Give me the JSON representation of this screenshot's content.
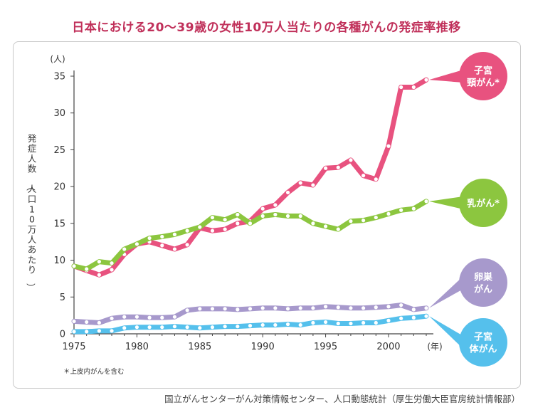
{
  "title": "日本における20〜39歳の女性10万人当たりの各種がんの発症率推移",
  "source": "国立がんセンターがん対策情報センター、人口動態統計（厚生労働大臣官房統計情報部）",
  "footnote": "＊上皮内がんを含む",
  "colors": {
    "cervical": "#e8527f",
    "breast": "#8cc63f",
    "ovarian": "#a799cc",
    "uterine": "#55c0ec",
    "title": "#c0305a"
  },
  "chart_data": {
    "type": "line",
    "title": "日本における20〜39歳の女性10万人当たりの各種がんの発症率推移",
    "xlabel": "(年)",
    "ylabel": "発症人数（人口10万人あたり）",
    "y_unit": "(人)",
    "xlim": [
      1975,
      2003
    ],
    "ylim": [
      0,
      35
    ],
    "x_ticks": [
      1975,
      1980,
      1985,
      1990,
      1995,
      2000
    ],
    "y_ticks": [
      0,
      5,
      10,
      15,
      20,
      25,
      30,
      35
    ],
    "grid": false,
    "legend": "labels at line ends",
    "x": [
      1975,
      1976,
      1977,
      1978,
      1979,
      1980,
      1981,
      1982,
      1983,
      1984,
      1985,
      1986,
      1987,
      1988,
      1989,
      1990,
      1991,
      1992,
      1993,
      1994,
      1995,
      1996,
      1997,
      1998,
      1999,
      2000,
      2001,
      2002,
      2003
    ],
    "series": [
      {
        "name": "子宮頸がん*",
        "label_lines": [
          "子宮",
          "頸がん*"
        ],
        "color": "#e8527f",
        "values": [
          9.2,
          8.6,
          8.0,
          8.7,
          10.8,
          12.2,
          12.5,
          12.0,
          11.5,
          12.1,
          14.4,
          14.0,
          14.2,
          15.0,
          15.3,
          17.0,
          17.5,
          19.2,
          20.5,
          20.2,
          22.5,
          22.6,
          23.6,
          21.5,
          21.0,
          25.5,
          33.5,
          33.5,
          34.5
        ]
      },
      {
        "name": "乳がん*",
        "label_lines": [
          "乳がん*"
        ],
        "color": "#8cc63f",
        "values": [
          9.2,
          8.8,
          9.8,
          9.6,
          11.5,
          12.2,
          13.0,
          13.2,
          13.5,
          14.0,
          14.5,
          15.8,
          15.5,
          16.2,
          15.0,
          16.0,
          16.2,
          16.0,
          16.0,
          15.0,
          14.6,
          14.2,
          15.3,
          15.4,
          15.8,
          16.3,
          16.8,
          17.0,
          18.0
        ]
      },
      {
        "name": "卵巣がん",
        "label_lines": [
          "卵巣",
          "がん"
        ],
        "color": "#a799cc",
        "values": [
          1.7,
          1.6,
          1.5,
          2.1,
          2.3,
          2.3,
          2.2,
          2.2,
          2.3,
          3.2,
          3.4,
          3.4,
          3.4,
          3.3,
          3.4,
          3.5,
          3.5,
          3.4,
          3.5,
          3.5,
          3.7,
          3.6,
          3.5,
          3.5,
          3.6,
          3.7,
          3.9,
          3.3,
          3.5
        ]
      },
      {
        "name": "子宮体がん",
        "label_lines": [
          "子宮",
          "体がん"
        ],
        "color": "#55c0ec",
        "values": [
          0.3,
          0.3,
          0.4,
          0.4,
          0.8,
          0.9,
          0.9,
          0.9,
          1.0,
          0.9,
          0.8,
          0.9,
          1.0,
          1.0,
          1.1,
          1.2,
          1.2,
          1.3,
          1.2,
          1.5,
          1.6,
          1.4,
          1.4,
          1.5,
          1.5,
          1.8,
          2.1,
          2.2,
          2.4
        ]
      }
    ]
  }
}
